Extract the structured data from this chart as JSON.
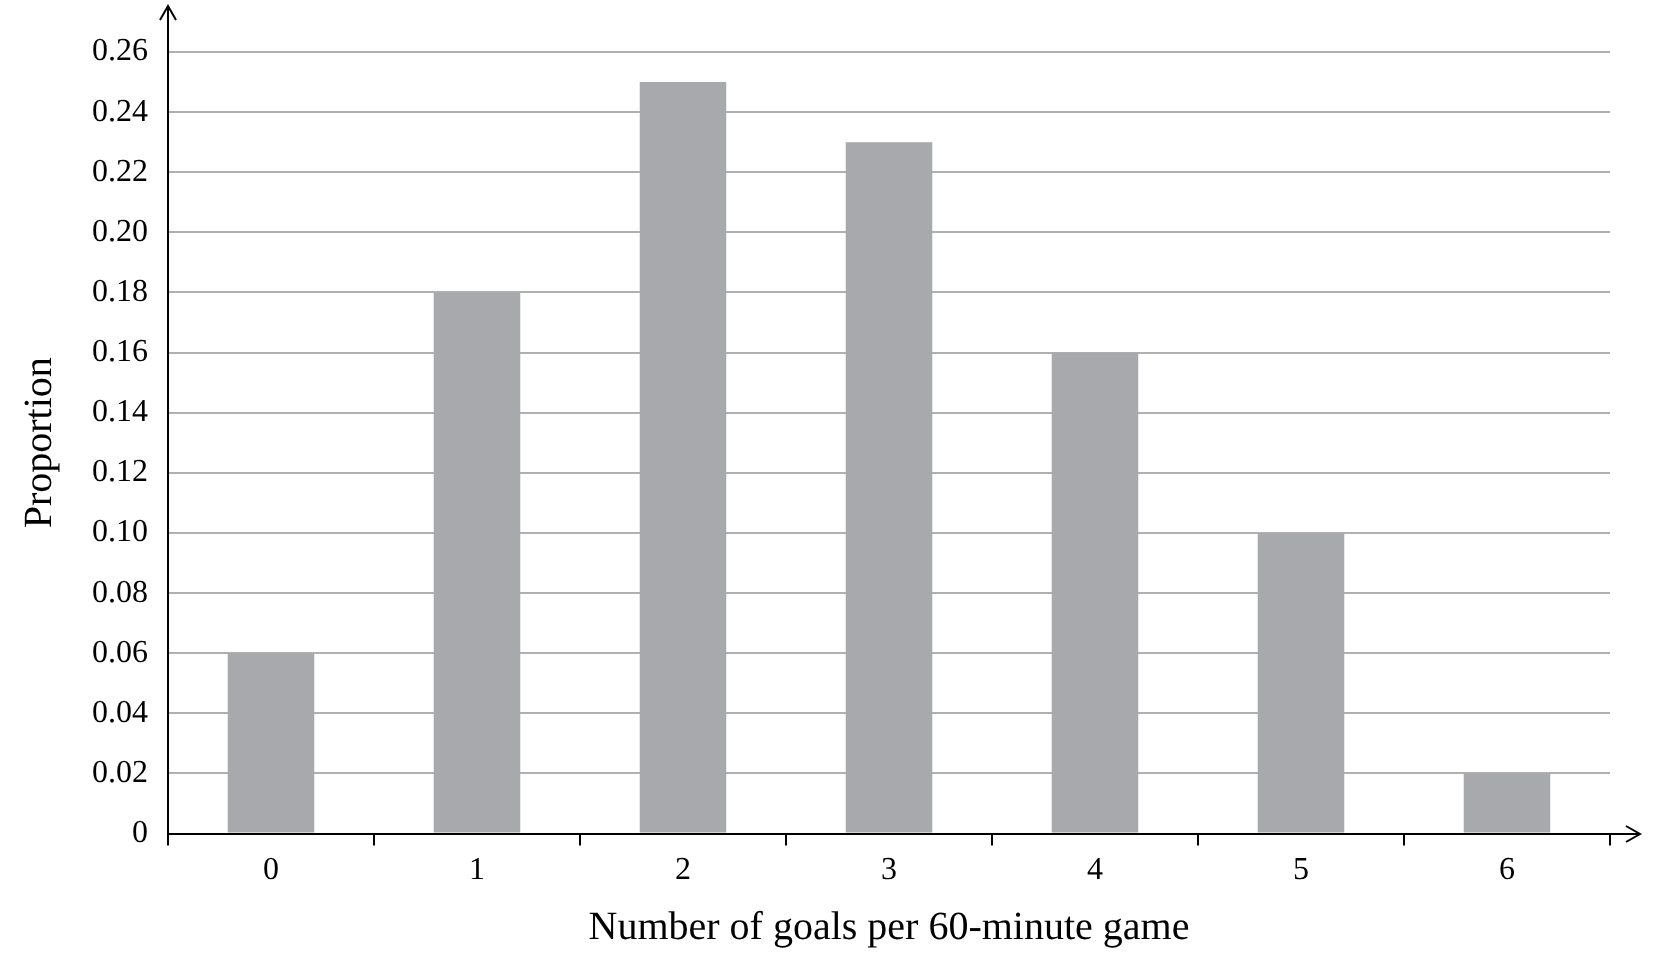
{
  "chart_data": {
    "type": "bar",
    "xlabel": "Number of goals per 60-minute game",
    "ylabel": "Proportion",
    "categories": [
      "0",
      "1",
      "2",
      "3",
      "4",
      "5",
      "6"
    ],
    "values": [
      0.06,
      0.18,
      0.25,
      0.23,
      0.16,
      0.1,
      0.02
    ],
    "color": "#a7a9ac",
    "ylim": [
      0,
      0.26
    ],
    "yticks": [
      0,
      0.02,
      0.04,
      0.06,
      0.08,
      {
        "value": 0.1,
        "label": "0.10"
      },
      0.12,
      0.14,
      0.16,
      0.18,
      {
        "value": 0.2,
        "label": "0.20"
      },
      0.22,
      0.24,
      0.26
    ],
    "grid": "y",
    "legend": false
  }
}
